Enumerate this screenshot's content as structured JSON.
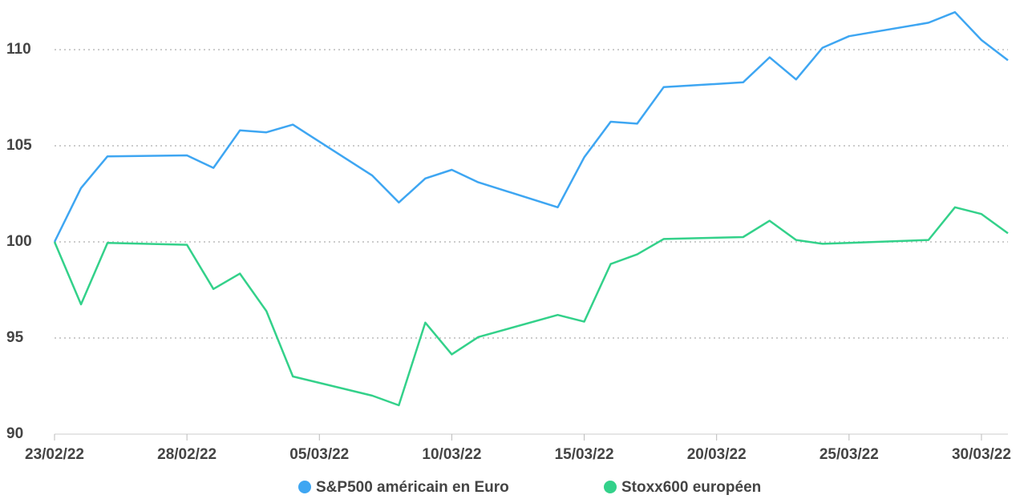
{
  "chart_data": {
    "type": "line",
    "x": [
      "2022-02-23",
      "2022-02-24",
      "2022-02-25",
      "2022-02-28",
      "2022-03-01",
      "2022-03-02",
      "2022-03-03",
      "2022-03-04",
      "2022-03-07",
      "2022-03-08",
      "2022-03-09",
      "2022-03-10",
      "2022-03-11",
      "2022-03-14",
      "2022-03-15",
      "2022-03-16",
      "2022-03-17",
      "2022-03-18",
      "2022-03-21",
      "2022-03-22",
      "2022-03-23",
      "2022-03-24",
      "2022-03-25",
      "2022-03-28",
      "2022-03-29",
      "2022-03-30",
      "2022-03-31"
    ],
    "series": [
      {
        "name": "S&P500 américain en Euro",
        "color": "#3ea6f2",
        "values": [
          100,
          102.8,
          104.45,
          104.5,
          103.85,
          105.8,
          105.7,
          106.1,
          103.45,
          102.05,
          103.3,
          103.75,
          103.1,
          101.8,
          104.4,
          106.25,
          106.15,
          108.05,
          108.3,
          109.6,
          108.45,
          110.1,
          110.7,
          111.4,
          111.95,
          110.5,
          109.45
        ]
      },
      {
        "name": "Stoxx600 européen",
        "color": "#33d18a",
        "values": [
          100,
          96.75,
          99.95,
          99.85,
          97.55,
          98.35,
          96.4,
          93.0,
          92.0,
          91.5,
          95.8,
          94.15,
          95.05,
          96.2,
          95.85,
          98.85,
          99.35,
          100.15,
          100.25,
          101.1,
          100.1,
          99.9,
          99.95,
          100.1,
          101.8,
          101.45,
          100.45
        ]
      }
    ],
    "xlim": [
      "2022-02-23",
      "2022-03-31"
    ],
    "xticks": [
      {
        "value": "2022-02-23",
        "label": "23/02/22"
      },
      {
        "value": "2022-02-28",
        "label": "28/02/22"
      },
      {
        "value": "2022-03-05",
        "label": "05/03/22"
      },
      {
        "value": "2022-03-10",
        "label": "10/03/22"
      },
      {
        "value": "2022-03-15",
        "label": "15/03/22"
      },
      {
        "value": "2022-03-20",
        "label": "20/03/22"
      },
      {
        "value": "2022-03-25",
        "label": "25/03/22"
      },
      {
        "value": "2022-03-30",
        "label": "30/03/22"
      }
    ],
    "ylim": [
      90,
      112.5
    ],
    "yticks": [
      90,
      95,
      100,
      105,
      110
    ],
    "grid": true,
    "legend": "bottom"
  }
}
